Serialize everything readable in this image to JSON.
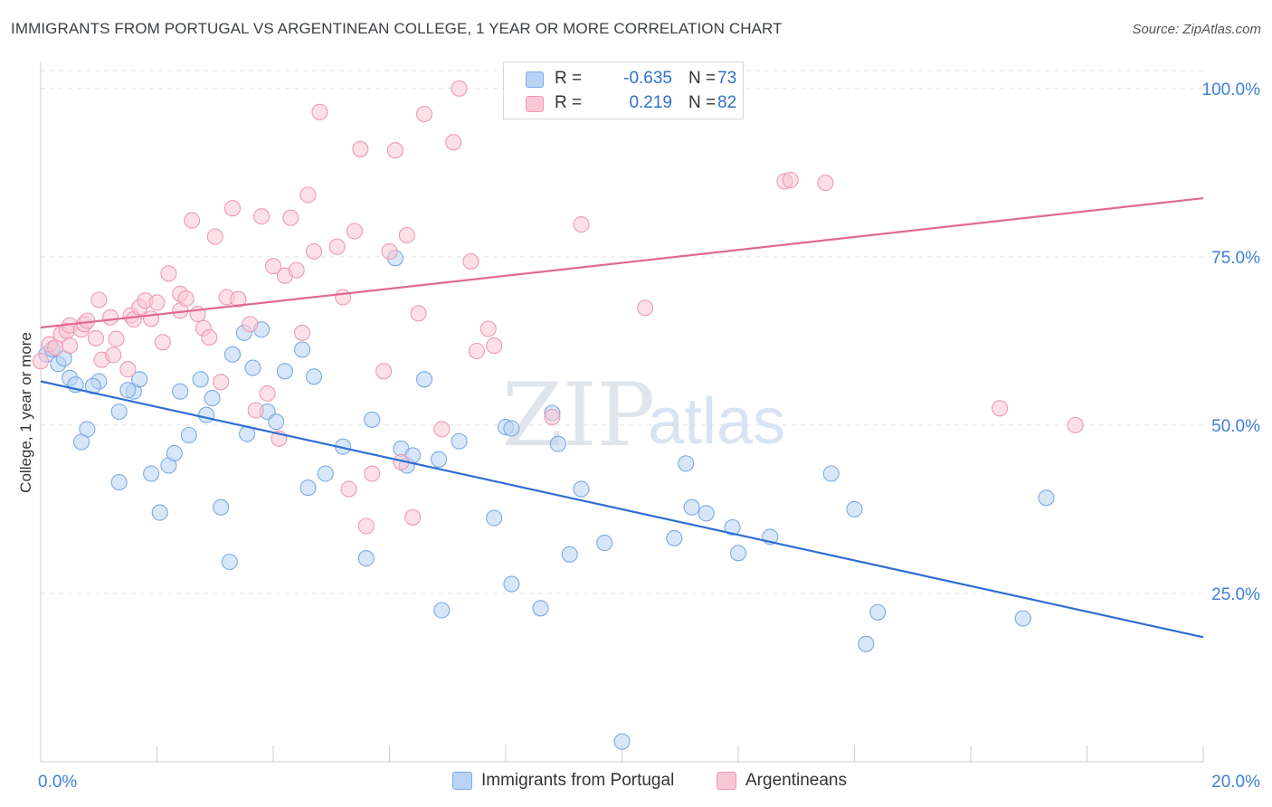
{
  "title": "IMMIGRANTS FROM PORTUGAL VS ARGENTINEAN COLLEGE, 1 YEAR OR MORE CORRELATION CHART",
  "source": "Source: ZipAtlas.com",
  "watermark": {
    "zip": "ZIP",
    "atlas": "atlas"
  },
  "legend": {
    "r_label": "R =",
    "n_label": "N =",
    "rows": [
      {
        "r": "-0.635",
        "n": "73",
        "color": "#a8c8f0"
      },
      {
        "r": "0.219",
        "n": "82",
        "color": "#f7b8cc"
      }
    ]
  },
  "chart_data": {
    "type": "scatter",
    "title": "IMMIGRANTS FROM PORTUGAL VS ARGENTINEAN COLLEGE, 1 YEAR OR MORE CORRELATION CHART",
    "xlabel": "",
    "ylabel": "College, 1 year or more",
    "xlim": [
      0,
      20
    ],
    "ylim": [
      0,
      104
    ],
    "x_tick_labels": [
      "0.0%",
      "20.0%"
    ],
    "y_ticks": [
      25,
      50,
      75,
      100
    ],
    "y_tick_labels": [
      "25.0%",
      "50.0%",
      "75.0%",
      "100.0%"
    ],
    "grid": true,
    "legend_position": "top-center",
    "series": [
      {
        "name": "Immigrants from Portugal",
        "color": "#7aaae6",
        "fill": "#b8d3f3",
        "trend": {
          "x": [
            0,
            20
          ],
          "y": [
            56.5,
            18.5
          ],
          "color": "#2f6fd0"
        },
        "points": [
          [
            0.1,
            60.5
          ],
          [
            0.2,
            61.3
          ],
          [
            0.3,
            59.1
          ],
          [
            0.4,
            59.9
          ],
          [
            0.5,
            57.0
          ],
          [
            0.6,
            56.0
          ],
          [
            0.8,
            49.4
          ],
          [
            1.0,
            56.5
          ],
          [
            1.35,
            52.0
          ],
          [
            1.6,
            55.0
          ],
          [
            1.5,
            55.2
          ],
          [
            1.7,
            56.8
          ],
          [
            0.9,
            55.8
          ],
          [
            0.7,
            47.5
          ],
          [
            1.35,
            41.5
          ],
          [
            1.9,
            42.8
          ],
          [
            2.05,
            37.0
          ],
          [
            2.2,
            44.0
          ],
          [
            2.3,
            45.8
          ],
          [
            2.4,
            55.0
          ],
          [
            2.55,
            48.5
          ],
          [
            2.75,
            56.8
          ],
          [
            2.85,
            51.5
          ],
          [
            2.95,
            54.0
          ],
          [
            3.1,
            37.8
          ],
          [
            3.25,
            29.7
          ],
          [
            3.3,
            60.5
          ],
          [
            3.5,
            63.7
          ],
          [
            3.55,
            48.7
          ],
          [
            3.65,
            58.5
          ],
          [
            3.8,
            64.2
          ],
          [
            3.9,
            52.0
          ],
          [
            4.05,
            50.5
          ],
          [
            4.2,
            58.0
          ],
          [
            4.5,
            61.2
          ],
          [
            4.6,
            40.7
          ],
          [
            4.7,
            57.2
          ],
          [
            4.9,
            42.8
          ],
          [
            5.2,
            46.8
          ],
          [
            5.6,
            30.2
          ],
          [
            5.7,
            50.8
          ],
          [
            6.1,
            74.8
          ],
          [
            6.2,
            46.5
          ],
          [
            6.3,
            44.0
          ],
          [
            6.4,
            45.5
          ],
          [
            6.6,
            56.8
          ],
          [
            6.85,
            44.9
          ],
          [
            6.9,
            22.5
          ],
          [
            7.2,
            47.6
          ],
          [
            7.8,
            36.2
          ],
          [
            8.0,
            49.7
          ],
          [
            8.1,
            49.5
          ],
          [
            8.1,
            26.4
          ],
          [
            8.6,
            22.8
          ],
          [
            8.8,
            51.8
          ],
          [
            8.9,
            47.2
          ],
          [
            9.1,
            30.8
          ],
          [
            9.3,
            40.5
          ],
          [
            9.7,
            32.5
          ],
          [
            10.0,
            3.0
          ],
          [
            10.9,
            33.2
          ],
          [
            11.1,
            44.3
          ],
          [
            11.2,
            37.8
          ],
          [
            11.45,
            36.9
          ],
          [
            11.9,
            34.8
          ],
          [
            12.0,
            31.0
          ],
          [
            12.55,
            33.4
          ],
          [
            13.6,
            42.8
          ],
          [
            14.0,
            37.5
          ],
          [
            14.2,
            17.5
          ],
          [
            14.4,
            22.2
          ],
          [
            16.9,
            21.3
          ],
          [
            17.3,
            39.2
          ]
        ]
      },
      {
        "name": "Argentineans",
        "color": "#ee9ab5",
        "fill": "#f9c6d6",
        "trend": {
          "x": [
            0,
            20
          ],
          "y": [
            64.5,
            83.7
          ],
          "color": "#e06a92"
        },
        "points": [
          [
            0.0,
            59.5
          ],
          [
            0.15,
            62.0
          ],
          [
            0.25,
            61.5
          ],
          [
            0.35,
            63.5
          ],
          [
            0.45,
            64.0
          ],
          [
            0.5,
            64.8
          ],
          [
            0.5,
            61.8
          ],
          [
            0.7,
            64.2
          ],
          [
            0.75,
            65.0
          ],
          [
            0.8,
            65.5
          ],
          [
            0.95,
            62.9
          ],
          [
            1.0,
            68.6
          ],
          [
            1.05,
            59.7
          ],
          [
            1.2,
            66.0
          ],
          [
            1.25,
            60.4
          ],
          [
            1.3,
            62.8
          ],
          [
            1.5,
            58.3
          ],
          [
            1.55,
            66.3
          ],
          [
            1.6,
            65.7
          ],
          [
            1.7,
            67.5
          ],
          [
            1.8,
            68.5
          ],
          [
            1.9,
            65.8
          ],
          [
            2.0,
            68.2
          ],
          [
            2.1,
            62.3
          ],
          [
            2.2,
            72.5
          ],
          [
            2.4,
            67.0
          ],
          [
            2.4,
            69.5
          ],
          [
            2.5,
            68.8
          ],
          [
            2.6,
            80.4
          ],
          [
            2.7,
            66.5
          ],
          [
            2.8,
            64.4
          ],
          [
            2.9,
            63.0
          ],
          [
            3.0,
            78.0
          ],
          [
            3.1,
            56.4
          ],
          [
            3.2,
            69.0
          ],
          [
            3.3,
            82.2
          ],
          [
            3.4,
            68.7
          ],
          [
            3.6,
            65.0
          ],
          [
            3.7,
            52.2
          ],
          [
            3.8,
            81.0
          ],
          [
            3.9,
            54.7
          ],
          [
            4.0,
            73.6
          ],
          [
            4.1,
            48.0
          ],
          [
            4.2,
            72.2
          ],
          [
            4.3,
            80.8
          ],
          [
            4.4,
            73.0
          ],
          [
            4.5,
            63.7
          ],
          [
            4.6,
            84.2
          ],
          [
            4.7,
            75.8
          ],
          [
            4.8,
            96.5
          ],
          [
            5.1,
            76.5
          ],
          [
            5.2,
            69.0
          ],
          [
            5.3,
            40.5
          ],
          [
            5.4,
            78.8
          ],
          [
            5.5,
            91.0
          ],
          [
            5.6,
            35.0
          ],
          [
            5.7,
            42.8
          ],
          [
            5.9,
            58.0
          ],
          [
            6.0,
            75.8
          ],
          [
            6.1,
            90.8
          ],
          [
            6.2,
            44.5
          ],
          [
            6.3,
            78.2
          ],
          [
            6.4,
            36.3
          ],
          [
            6.5,
            66.6
          ],
          [
            6.6,
            96.2
          ],
          [
            6.9,
            49.4
          ],
          [
            7.1,
            92.0
          ],
          [
            7.2,
            100.0
          ],
          [
            7.4,
            74.3
          ],
          [
            7.5,
            61.0
          ],
          [
            7.7,
            64.3
          ],
          [
            7.8,
            61.8
          ],
          [
            8.2,
            97.5
          ],
          [
            8.3,
            99.0
          ],
          [
            8.8,
            51.2
          ],
          [
            9.3,
            79.8
          ],
          [
            10.4,
            67.4
          ],
          [
            12.8,
            86.2
          ],
          [
            12.9,
            86.4
          ],
          [
            13.5,
            86.0
          ],
          [
            16.5,
            52.5
          ],
          [
            17.8,
            50.0
          ]
        ]
      }
    ]
  }
}
